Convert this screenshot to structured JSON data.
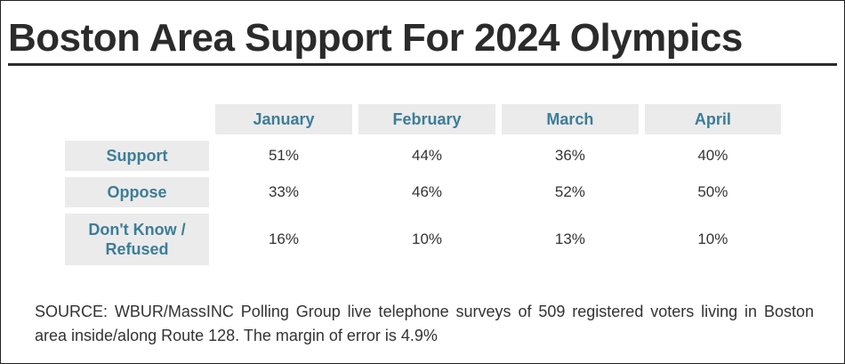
{
  "chart_data": {
    "type": "table",
    "title": "Boston Area Support For 2024 Olympics",
    "columns": [
      "January",
      "February",
      "March",
      "April"
    ],
    "rows": [
      {
        "label": "Support",
        "values": [
          "51%",
          "44%",
          "36%",
          "40%"
        ]
      },
      {
        "label": "Oppose",
        "values": [
          "33%",
          "46%",
          "52%",
          "50%"
        ]
      },
      {
        "label_lines": [
          "Don't Know /",
          "Refused"
        ],
        "values": [
          "16%",
          "10%",
          "13%",
          "10%"
        ]
      }
    ],
    "source_note": "SOURCE: WBUR/MassINC Polling Group live telephone surveys of 509 registered voters living in Boston area inside/along Route 128. The margin of error is 4.9%"
  },
  "colors": {
    "title": "#2b2b2b",
    "header_text": "#3c7d98",
    "header_bg": "#ebebeb",
    "cell_text": "#333333"
  }
}
